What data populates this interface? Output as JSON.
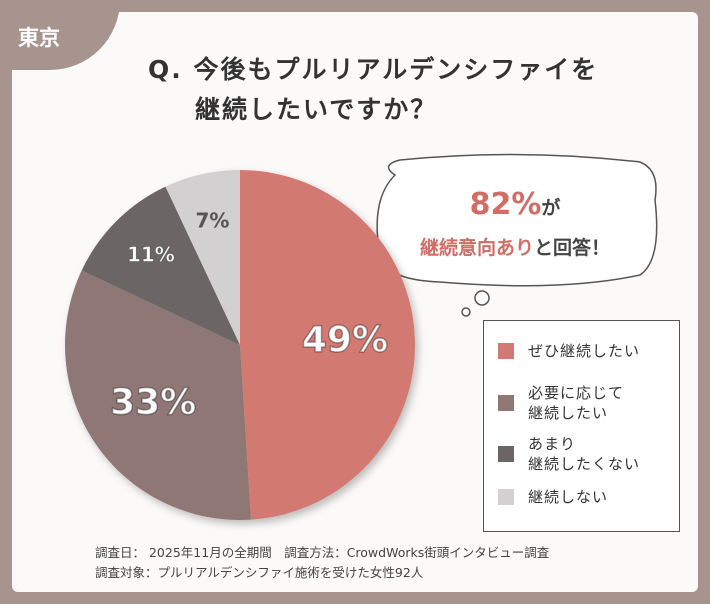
{
  "tag": "東京",
  "chart_data": {
    "type": "pie",
    "title": [
      "Q. 今後もプルリアルデンシファイを",
      "継続したいですか？"
    ],
    "categories": [
      "ぜひ継続したい",
      "必要に応じて\n継続したい",
      "あまり\n継続したくない",
      "継続しない"
    ],
    "values": [
      49,
      33,
      11,
      7
    ],
    "value_labels": [
      "49%",
      "33%",
      "11%",
      "7%"
    ],
    "colors": [
      "#d27a72",
      "#8f7774",
      "#6c6565",
      "#d2d0d0"
    ],
    "legend": "right"
  },
  "callout": {
    "figure": "82%",
    "after_figure": "が",
    "highlight": "継続意向あり",
    "rest": "と回答！"
  },
  "footnotes": [
    "調査日： 2025年11月の全期間　調査方法：CrowdWorks街頭インタビュー調査",
    "調査対象：プルリアルデンシファイ施術を受けた女性92人"
  ]
}
